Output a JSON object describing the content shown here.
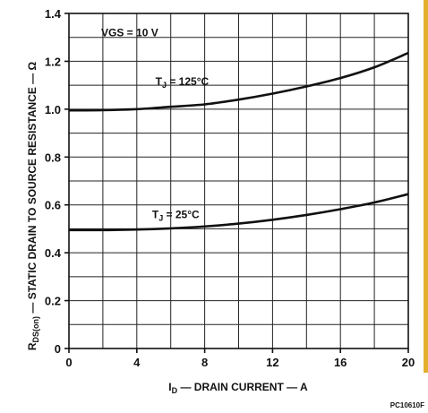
{
  "chart_data": {
    "type": "line",
    "xlabel": "I D — DRAIN CURRENT — A",
    "xlabel_main": "I",
    "xlabel_sub": "D",
    "xlabel_rest": " — DRAIN CURRENT — A",
    "ylabel_main": "R",
    "ylabel_sub": "DS(on)",
    "ylabel_rest": " — STATIC DRAIN TO SOURCE RESISTANCE — Ω",
    "xlim": [
      0,
      20
    ],
    "ylim": [
      0,
      1.4
    ],
    "x_ticks": [
      0,
      2,
      4,
      6,
      8,
      10,
      12,
      14,
      16,
      18,
      20
    ],
    "x_tick_labels": [
      "0",
      "4",
      "8",
      "12",
      "16",
      "20"
    ],
    "x_tick_label_values": [
      0,
      4,
      8,
      12,
      16,
      20
    ],
    "y_ticks": [
      0,
      0.1,
      0.2,
      0.3,
      0.4,
      0.5,
      0.6,
      0.7,
      0.8,
      0.9,
      1.0,
      1.1,
      1.2,
      1.3,
      1.4
    ],
    "y_tick_labels": [
      "0",
      "0.2",
      "0.4",
      "0.6",
      "0.8",
      "1.0",
      "1.2",
      "1.4"
    ],
    "y_tick_label_values": [
      0,
      0.2,
      0.4,
      0.6,
      0.8,
      1.0,
      1.2,
      1.4
    ],
    "grid": true,
    "legend": "none",
    "annotations": {
      "vgs": {
        "text": "VGS = 10 V",
        "x": 1.9,
        "y": 1.305
      },
      "tj125": {
        "main": "T",
        "sub": "J",
        "rest": " = 125°C",
        "x": 5.1,
        "y": 1.1
      },
      "tj25": {
        "main": "T",
        "sub": "J",
        "rest": " = 25°C",
        "x": 4.9,
        "y": 0.545
      }
    },
    "figure_code": "PC10610F",
    "series": [
      {
        "x": [
          0,
          2,
          4,
          6,
          8,
          10,
          12,
          14,
          16,
          18,
          20
        ],
        "y": [
          0.995,
          0.996,
          1.0,
          1.01,
          1.02,
          1.04,
          1.065,
          1.095,
          1.13,
          1.175,
          1.235
        ]
      },
      {
        "x": [
          0,
          2,
          4,
          6,
          8,
          10,
          12,
          14,
          16,
          18,
          20
        ],
        "y": [
          0.495,
          0.495,
          0.497,
          0.502,
          0.51,
          0.522,
          0.538,
          0.558,
          0.582,
          0.61,
          0.645
        ]
      }
    ]
  }
}
